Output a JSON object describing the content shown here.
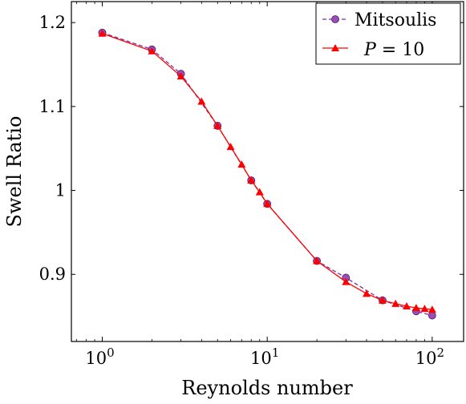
{
  "chart_data": {
    "type": "line",
    "xlabel": "Reynolds number",
    "ylabel": "Swell Ratio",
    "xscale": "log",
    "xlim": [
      0.65,
      155
    ],
    "ylim": [
      0.82,
      1.225
    ],
    "grid": false,
    "legend_position": "top-right",
    "xticks": [
      {
        "value": 1,
        "base": "10",
        "exp": "0"
      },
      {
        "value": 10,
        "base": "10",
        "exp": "1"
      },
      {
        "value": 100,
        "base": "10",
        "exp": "2"
      }
    ],
    "yticks": [
      {
        "value": 0.9,
        "label": "0.9"
      },
      {
        "value": 1.0,
        "label": "1"
      },
      {
        "value": 1.1,
        "label": "1.1"
      },
      {
        "value": 1.2,
        "label": "1.2"
      }
    ],
    "series": [
      {
        "name": "Mitsoulis",
        "color": "#7B2FA0",
        "fill": "#9A4DB4",
        "marker": "circle",
        "line_style": "dashed",
        "points": [
          {
            "x": 1,
            "y": 1.188
          },
          {
            "x": 2,
            "y": 1.168
          },
          {
            "x": 3,
            "y": 1.139
          },
          {
            "x": 5,
            "y": 1.077
          },
          {
            "x": 8,
            "y": 1.012
          },
          {
            "x": 10,
            "y": 0.984
          },
          {
            "x": 20,
            "y": 0.916
          },
          {
            "x": 30,
            "y": 0.896
          },
          {
            "x": 50,
            "y": 0.869
          },
          {
            "x": 80,
            "y": 0.856
          },
          {
            "x": 100,
            "y": 0.851
          }
        ]
      },
      {
        "name_prefix": "P",
        "name_suffix": " = 10",
        "color": "#FF0000",
        "fill": "#FF0000",
        "marker": "triangle",
        "line_style": "solid",
        "points": [
          {
            "x": 1,
            "y": 1.187
          },
          {
            "x": 2,
            "y": 1.166
          },
          {
            "x": 3,
            "y": 1.136
          },
          {
            "x": 4,
            "y": 1.106
          },
          {
            "x": 5,
            "y": 1.077
          },
          {
            "x": 6,
            "y": 1.052
          },
          {
            "x": 7,
            "y": 1.031
          },
          {
            "x": 8,
            "y": 1.012
          },
          {
            "x": 9,
            "y": 0.998
          },
          {
            "x": 10,
            "y": 0.984
          },
          {
            "x": 20,
            "y": 0.916
          },
          {
            "x": 30,
            "y": 0.891
          },
          {
            "x": 40,
            "y": 0.877
          },
          {
            "x": 50,
            "y": 0.869
          },
          {
            "x": 60,
            "y": 0.865
          },
          {
            "x": 70,
            "y": 0.862
          },
          {
            "x": 80,
            "y": 0.86
          },
          {
            "x": 90,
            "y": 0.859
          },
          {
            "x": 100,
            "y": 0.858
          }
        ]
      }
    ]
  }
}
